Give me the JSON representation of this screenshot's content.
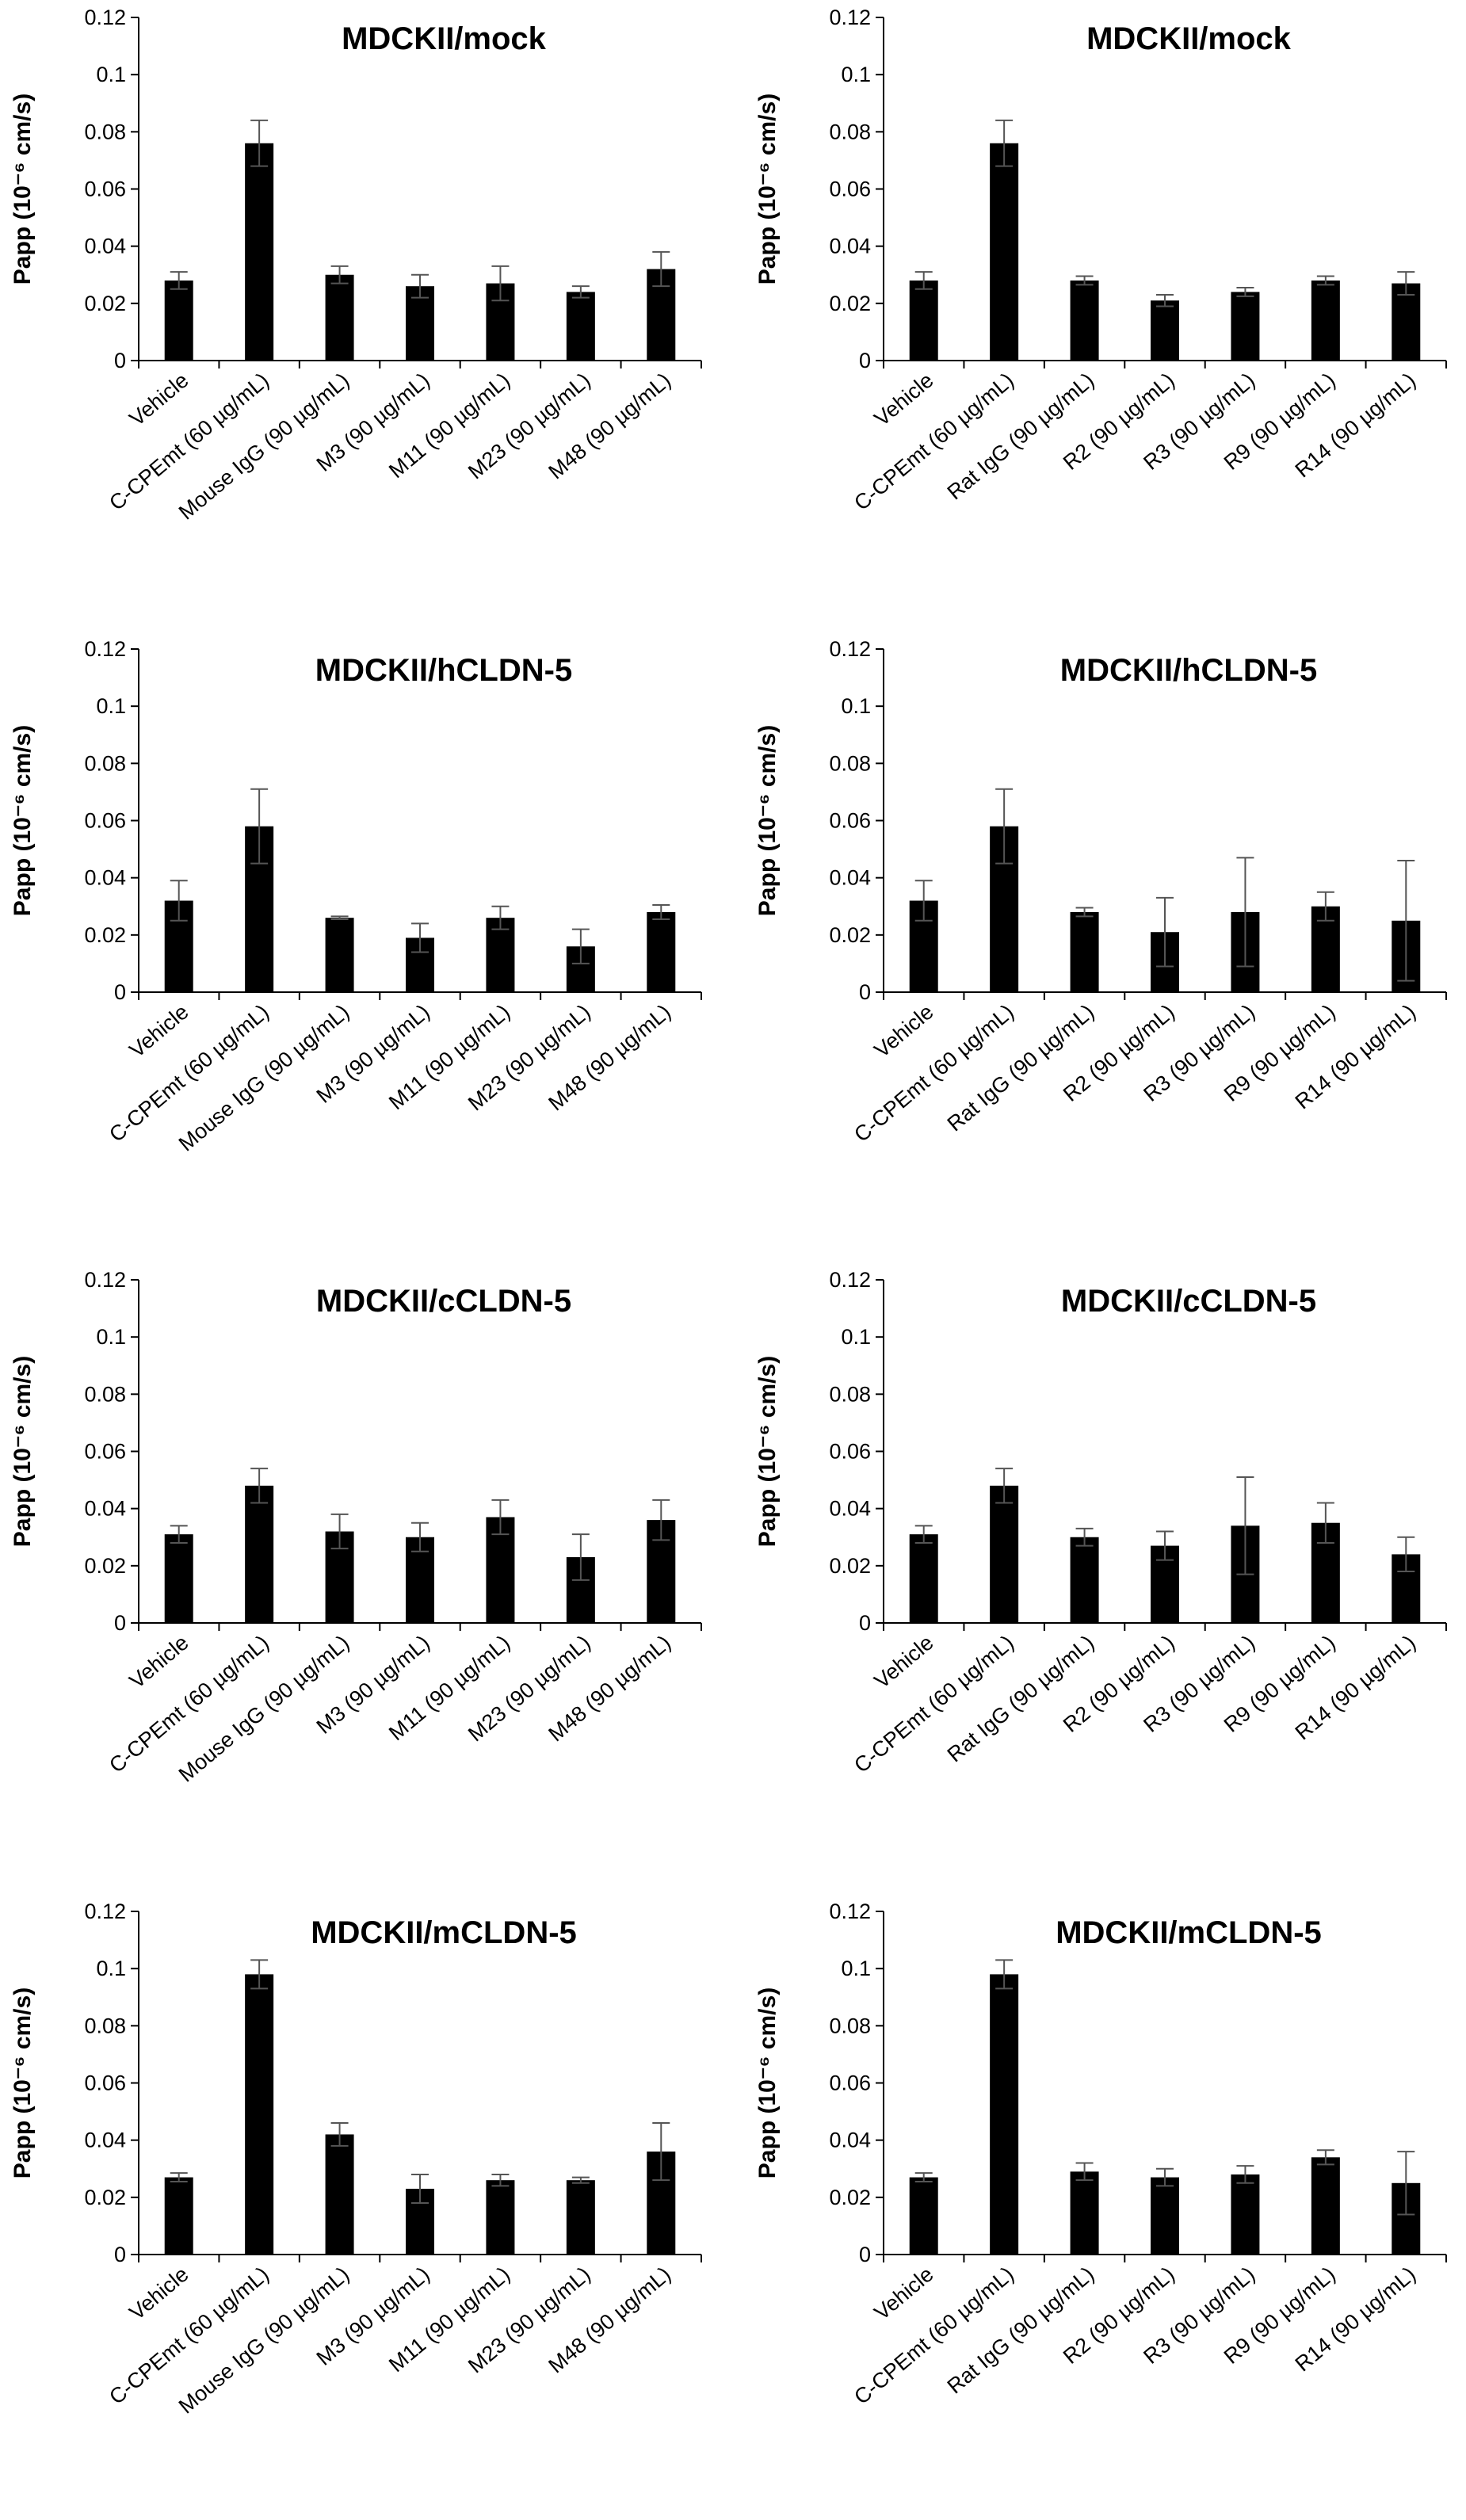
{
  "styles": {
    "bar_color": "#000000",
    "error_color": "#555555",
    "axis_color": "#000000"
  },
  "chart_data": [
    {
      "type": "bar",
      "title": "MDCKII/mock",
      "ylabel": "Papp (10⁻⁶ cm/s)",
      "ylim": [
        0,
        0.12
      ],
      "yticks": [
        "0",
        "0.02",
        "0.04",
        "0.06",
        "0.08",
        "0.1",
        "0.12"
      ],
      "categories": [
        "Vehicle",
        "C-CPEmt (60 µg/mL)",
        "Mouse IgG (90 µg/mL)",
        "M3 (90 µg/mL)",
        "M11 (90 µg/mL)",
        "M23 (90 µg/mL)",
        "M48 (90 µg/mL)"
      ],
      "values": [
        0.028,
        0.076,
        0.03,
        0.026,
        0.027,
        0.024,
        0.032
      ],
      "errors": [
        0.003,
        0.008,
        0.003,
        0.004,
        0.006,
        0.002,
        0.006
      ],
      "grid": false,
      "legend": "none"
    },
    {
      "type": "bar",
      "title": "MDCKII/mock",
      "ylabel": "Papp (10⁻⁶ cm/s)",
      "ylim": [
        0,
        0.12
      ],
      "yticks": [
        "0",
        "0.02",
        "0.04",
        "0.06",
        "0.08",
        "0.1",
        "0.12"
      ],
      "categories": [
        "Vehicle",
        "C-CPEmt (60 µg/mL)",
        "Rat IgG (90 µg/mL)",
        "R2 (90 µg/mL)",
        "R3 (90 µg/mL)",
        "R9 (90 µg/mL)",
        "R14 (90 µg/mL)"
      ],
      "values": [
        0.028,
        0.076,
        0.028,
        0.021,
        0.024,
        0.028,
        0.027
      ],
      "errors": [
        0.003,
        0.008,
        0.0015,
        0.002,
        0.0015,
        0.0015,
        0.004
      ],
      "grid": false,
      "legend": "none"
    },
    {
      "type": "bar",
      "title": "MDCKII/hCLDN-5",
      "ylabel": "Papp (10⁻⁶ cm/s)",
      "ylim": [
        0,
        0.12
      ],
      "yticks": [
        "0",
        "0.02",
        "0.04",
        "0.06",
        "0.08",
        "0.1",
        "0.12"
      ],
      "categories": [
        "Vehicle",
        "C-CPEmt (60 µg/mL)",
        "Mouse IgG (90 µg/mL)",
        "M3 (90 µg/mL)",
        "M11 (90 µg/mL)",
        "M23 (90 µg/mL)",
        "M48 (90 µg/mL)"
      ],
      "values": [
        0.032,
        0.058,
        0.026,
        0.019,
        0.026,
        0.016,
        0.028
      ],
      "errors": [
        0.007,
        0.013,
        0.0005,
        0.005,
        0.004,
        0.006,
        0.0025
      ],
      "grid": false,
      "legend": "none"
    },
    {
      "type": "bar",
      "title": "MDCKII/hCLDN-5",
      "ylabel": "Papp (10⁻⁶ cm/s)",
      "ylim": [
        0,
        0.12
      ],
      "yticks": [
        "0",
        "0.02",
        "0.04",
        "0.06",
        "0.08",
        "0.1",
        "0.12"
      ],
      "categories": [
        "Vehicle",
        "C-CPEmt (60 µg/mL)",
        "Rat IgG (90 µg/mL)",
        "R2 (90 µg/mL)",
        "R3 (90 µg/mL)",
        "R9 (90 µg/mL)",
        "R14 (90 µg/mL)"
      ],
      "values": [
        0.032,
        0.058,
        0.028,
        0.021,
        0.028,
        0.03,
        0.025
      ],
      "errors": [
        0.007,
        0.013,
        0.0015,
        0.012,
        0.019,
        0.005,
        0.021
      ],
      "grid": false,
      "legend": "none"
    },
    {
      "type": "bar",
      "title": "MDCKII/cCLDN-5",
      "ylabel": "Papp (10⁻⁶ cm/s)",
      "ylim": [
        0,
        0.12
      ],
      "yticks": [
        "0",
        "0.02",
        "0.04",
        "0.06",
        "0.08",
        "0.1",
        "0.12"
      ],
      "categories": [
        "Vehicle",
        "C-CPEmt (60 µg/mL)",
        "Mouse IgG (90 µg/mL)",
        "M3 (90 µg/mL)",
        "M11 (90 µg/mL)",
        "M23 (90 µg/mL)",
        "M48 (90 µg/mL)"
      ],
      "values": [
        0.031,
        0.048,
        0.032,
        0.03,
        0.037,
        0.023,
        0.036
      ],
      "errors": [
        0.003,
        0.006,
        0.006,
        0.005,
        0.006,
        0.008,
        0.007
      ],
      "grid": false,
      "legend": "none"
    },
    {
      "type": "bar",
      "title": "MDCKII/cCLDN-5",
      "ylabel": "Papp (10⁻⁶ cm/s)",
      "ylim": [
        0,
        0.12
      ],
      "yticks": [
        "0",
        "0.02",
        "0.04",
        "0.06",
        "0.08",
        "0.1",
        "0.12"
      ],
      "categories": [
        "Vehicle",
        "C-CPEmt (60 µg/mL)",
        "Rat IgG (90 µg/mL)",
        "R2 (90 µg/mL)",
        "R3 (90 µg/mL)",
        "R9 (90 µg/mL)",
        "R14 (90 µg/mL)"
      ],
      "values": [
        0.031,
        0.048,
        0.03,
        0.027,
        0.034,
        0.035,
        0.024
      ],
      "errors": [
        0.003,
        0.006,
        0.003,
        0.005,
        0.017,
        0.007,
        0.006
      ],
      "grid": false,
      "legend": "none"
    },
    {
      "type": "bar",
      "title": "MDCKII/mCLDN-5",
      "ylabel": "Papp (10⁻⁶ cm/s)",
      "ylim": [
        0,
        0.12
      ],
      "yticks": [
        "0",
        "0.02",
        "0.04",
        "0.06",
        "0.08",
        "0.1",
        "0.12"
      ],
      "categories": [
        "Vehicle",
        "C-CPEmt (60 µg/mL)",
        "Mouse IgG (90 µg/mL)",
        "M3 (90 µg/mL)",
        "M11 (90 µg/mL)",
        "M23 (90 µg/mL)",
        "M48 (90 µg/mL)"
      ],
      "values": [
        0.027,
        0.098,
        0.042,
        0.023,
        0.026,
        0.026,
        0.036
      ],
      "errors": [
        0.0015,
        0.005,
        0.004,
        0.005,
        0.002,
        0.001,
        0.01
      ],
      "grid": false,
      "legend": "none"
    },
    {
      "type": "bar",
      "title": "MDCKII/mCLDN-5",
      "ylabel": "Papp (10⁻⁶ cm/s)",
      "ylim": [
        0,
        0.12
      ],
      "yticks": [
        "0",
        "0.02",
        "0.04",
        "0.06",
        "0.08",
        "0.1",
        "0.12"
      ],
      "categories": [
        "Vehicle",
        "C-CPEmt (60 µg/mL)",
        "Rat IgG (90 µg/mL)",
        "R2 (90 µg/mL)",
        "R3 (90 µg/mL)",
        "R9 (90 µg/mL)",
        "R14 (90 µg/mL)"
      ],
      "values": [
        0.027,
        0.098,
        0.029,
        0.027,
        0.028,
        0.034,
        0.025
      ],
      "errors": [
        0.0015,
        0.005,
        0.003,
        0.003,
        0.003,
        0.0025,
        0.011
      ],
      "grid": false,
      "legend": "none"
    }
  ]
}
